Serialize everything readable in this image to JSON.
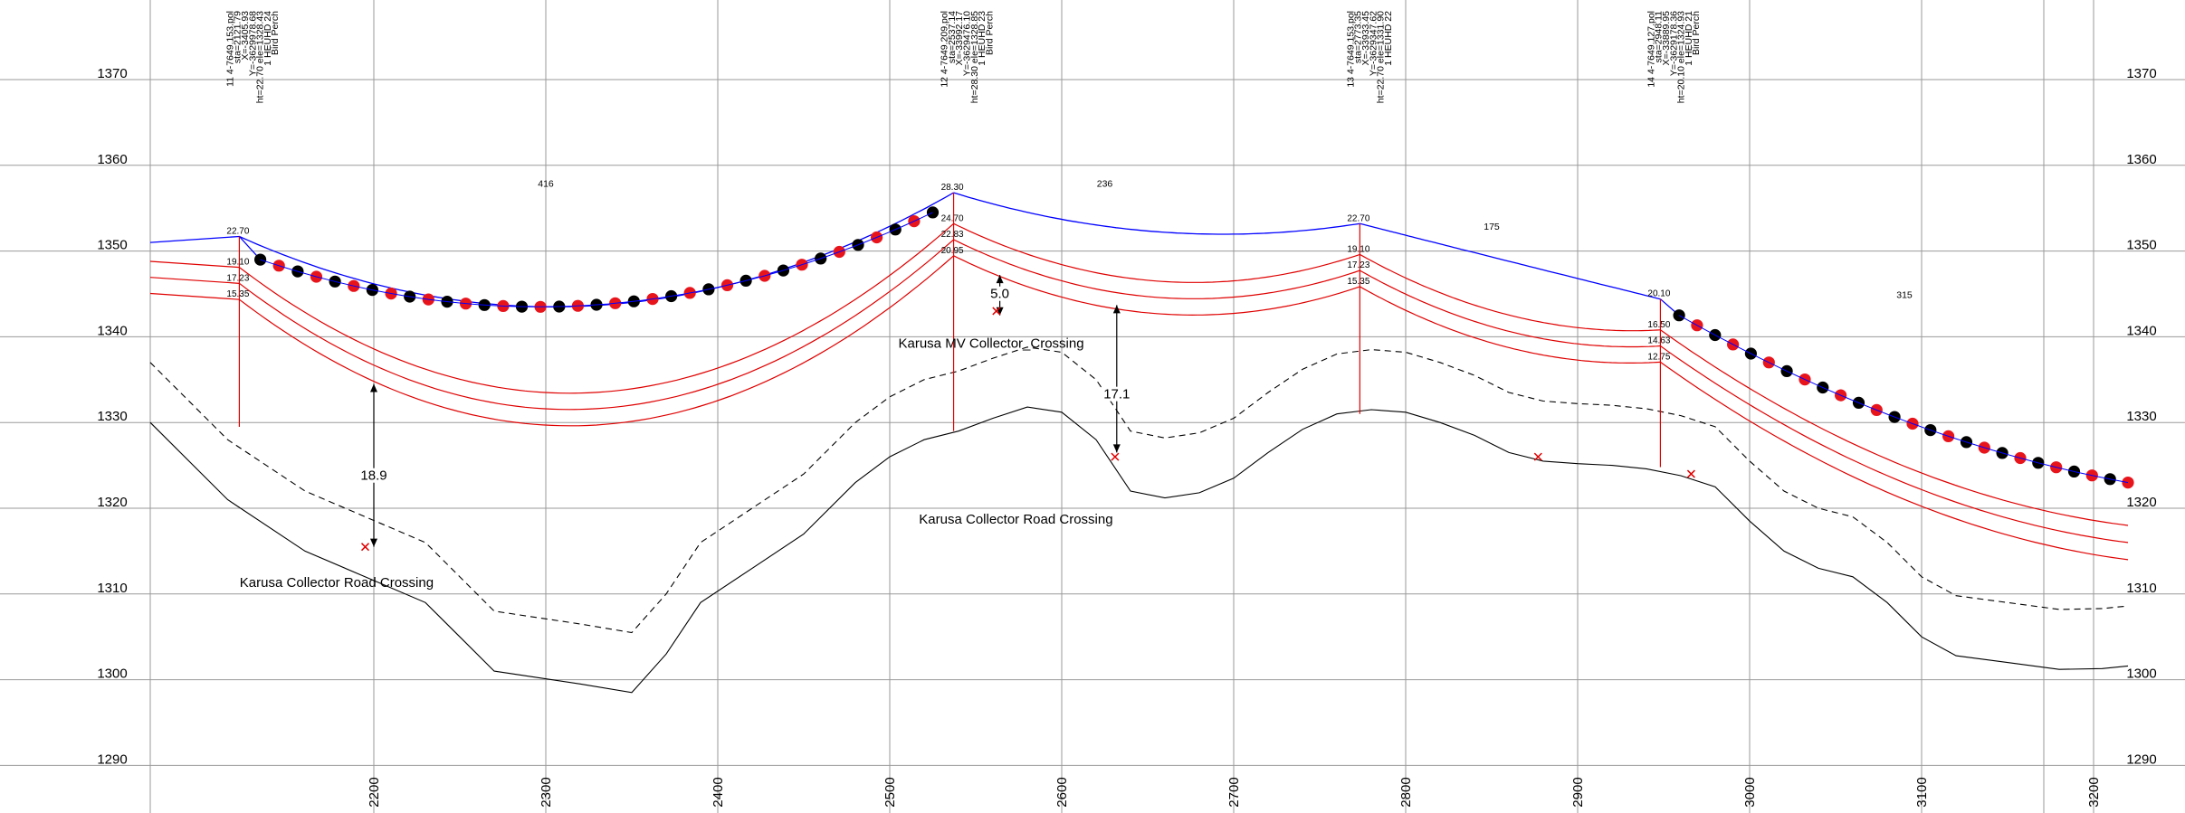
{
  "chart_data": {
    "type": "line",
    "xlim": [
      2070,
      3220
    ],
    "ylim": [
      1285,
      1375
    ],
    "grid": true,
    "x_ticks": [
      2200,
      2300,
      2400,
      2500,
      2600,
      2700,
      2800,
      2900,
      3000,
      3100,
      3200
    ],
    "y_ticks": [
      1290,
      1300,
      1310,
      1320,
      1330,
      1340,
      1350,
      1360,
      1370
    ],
    "series": [
      {
        "key": "ground",
        "style": "solid-black",
        "x": [
          2070,
          2115,
          2160,
          2230,
          2270,
          2320,
          2350,
          2370,
          2390,
          2420,
          2450,
          2480,
          2500,
          2520,
          2540,
          2560,
          2580,
          2600,
          2620,
          2640,
          2660,
          2680,
          2700,
          2720,
          2740,
          2760,
          2780,
          2800,
          2820,
          2840,
          2860,
          2880,
          2900,
          2920,
          2940,
          2960,
          2980,
          3000,
          3020,
          3040,
          3060,
          3080,
          3100,
          3120,
          3150,
          3180,
          3205,
          3220
        ],
        "y": [
          1330,
          1321,
          1315,
          1309,
          1301,
          1299.5,
          1298.5,
          1303,
          1309,
          1313,
          1317,
          1323,
          1326,
          1328,
          1329,
          1330.5,
          1331.8,
          1331.2,
          1328,
          1322,
          1321.2,
          1321.8,
          1323.5,
          1326.5,
          1329.2,
          1331,
          1331.5,
          1331.2,
          1330,
          1328.5,
          1326.5,
          1325.5,
          1325.2,
          1325,
          1324.6,
          1323.8,
          1322.5,
          1318.5,
          1315,
          1313,
          1312,
          1309,
          1305,
          1302.8,
          1302,
          1301.2,
          1301.3,
          1301.6
        ]
      },
      {
        "key": "clearance",
        "style": "dashed-black",
        "x": [
          2070,
          2115,
          2160,
          2230,
          2270,
          2320,
          2350,
          2370,
          2390,
          2420,
          2450,
          2480,
          2500,
          2520,
          2540,
          2560,
          2580,
          2600,
          2620,
          2640,
          2660,
          2680,
          2700,
          2720,
          2740,
          2760,
          2780,
          2800,
          2820,
          2840,
          2860,
          2880,
          2900,
          2920,
          2940,
          2960,
          2980,
          3000,
          3020,
          3040,
          3060,
          3080,
          3100,
          3120,
          3150,
          3180,
          3205,
          3220
        ],
        "y": [
          1337,
          1328,
          1322,
          1316,
          1308,
          1306.5,
          1305.5,
          1310,
          1316,
          1320,
          1324,
          1330,
          1333,
          1335,
          1336,
          1337.5,
          1338.8,
          1338.2,
          1335,
          1329,
          1328.2,
          1328.8,
          1330.5,
          1333.5,
          1336.2,
          1338,
          1338.5,
          1338.2,
          1337,
          1335.5,
          1333.5,
          1332.5,
          1332.2,
          1332,
          1331.6,
          1330.8,
          1329.5,
          1325.5,
          1322,
          1320,
          1319,
          1316,
          1312,
          1309.8,
          1309,
          1308.2,
          1308.3,
          1308.6
        ]
      }
    ],
    "structures": [
      {
        "station": 2121.79,
        "attach_heights": [
          22.7,
          19.1,
          17.23,
          15.35
        ],
        "ground_elev": 1329.5,
        "label_lines": [
          "11 4-7649.153.pol",
          "sta=2121.79",
          "X=-3405.93",
          "Y=-3629978.68",
          "ht=22.70 ele=1328.43",
          "1 HEUHD 24",
          "Bird Perch"
        ]
      },
      {
        "station": 2537.14,
        "attach_heights": [
          28.3,
          24.7,
          22.83,
          20.95
        ],
        "ground_elev": 1329,
        "label_lines": [
          "12 4-7649.209.pol",
          "sta=2537.14",
          "X=-33992.17",
          "Y=-3629476.10",
          "ht=28.30 ele=1328.85",
          "1 HEUHD 23",
          "Bird Perch"
        ]
      },
      {
        "station": 2773.35,
        "attach_heights": [
          22.7,
          19.1,
          17.23,
          15.35
        ],
        "ground_elev": 1331,
        "label_lines": [
          "13 4-7649.153.pol",
          "sta=2773.35",
          "X=-33933.45",
          "Y=-3629347.62",
          "ht=22.70 ele=1331.90",
          "1 HEUHD 22"
        ]
      },
      {
        "station": 2948.11,
        "attach_heights": [
          20.1,
          16.5,
          14.63,
          12.75
        ],
        "ground_elev": 1324.8,
        "label_lines": [
          "14 4-7649.127.pol",
          "sta=2948.11",
          "X=-33889.95",
          "Y=-3629178.36",
          "ht=20.10 ele=1324.93",
          "1 HEUHD 21",
          "Bird Perch"
        ]
      }
    ],
    "spans": [
      {
        "from": 0,
        "to": 1,
        "length_label": "416",
        "label_x": 2300,
        "label_y": 1357.5,
        "sag_mid": 1343.5,
        "sag_mid_x": 2300
      },
      {
        "from": 1,
        "to": 2,
        "length_label": "236",
        "label_x": 2625,
        "label_y": 1357.5,
        "sag_mid": 1352,
        "sag_mid_x": 2680
      },
      {
        "from": 2,
        "to": 3,
        "length_label": "175",
        "label_x": 2850,
        "label_y": 1352.5,
        "sag_mid": 1346.8,
        "sag_mid_x": 2900
      }
    ],
    "tail_span": {
      "label": "315",
      "label_x": 3090,
      "label_y": 1344.5,
      "end_x": 3220,
      "end_y": 1323
    },
    "lower_wire_mids": [
      1333.5,
      1346.5,
      1342.5
    ],
    "lower_wire_tail_end": [
      1318,
      1316,
      1314
    ],
    "marker_spans": [
      {
        "x_start": 2134,
        "x_end": 2525,
        "from_y": 1349.0,
        "to_y": 1354.5,
        "sag_x": 2300,
        "sag_y": 1343.5,
        "count": 37,
        "red_first": false
      },
      {
        "x_start": 2959,
        "x_end": 3220,
        "from_y": 1342.5,
        "to_y": 1323.0,
        "count": 26,
        "red_first": false
      }
    ],
    "clearances": [
      {
        "label": "18.9",
        "x": 2200,
        "y_top": 1334.5,
        "y_bottom": 1315.5,
        "label_y": 1323.3
      },
      {
        "label": "5.0",
        "x": 2564,
        "y_top": 1347.2,
        "y_bottom": 1342.5,
        "label_y": 1344.5
      },
      {
        "label": "17.1",
        "x": 2632,
        "y_top": 1343.7,
        "y_bottom": 1326.5,
        "label_y": 1332.8
      }
    ],
    "crossings": [
      {
        "label": "Karusa Collector Road Crossing",
        "x": 2122,
        "y": 1310.8
      },
      {
        "label": "Karusa MV Collector_Crossing",
        "x": 2505,
        "y": 1338.7
      },
      {
        "label": "Karusa Collector Road Crossing",
        "x": 2517,
        "y": 1318.2
      }
    ],
    "crossing_marks": [
      {
        "x": 2195,
        "y": 1315.5
      },
      {
        "x": 2562,
        "y": 1343
      },
      {
        "x": 2631,
        "y": 1326
      },
      {
        "x": 2877,
        "y": 1326
      },
      {
        "x": 2966,
        "y": 1324
      }
    ]
  }
}
